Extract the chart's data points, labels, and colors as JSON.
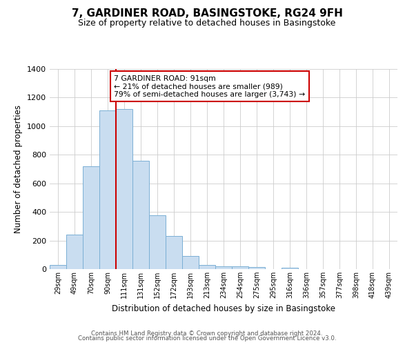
{
  "title": "7, GARDINER ROAD, BASINGSTOKE, RG24 9FH",
  "subtitle": "Size of property relative to detached houses in Basingstoke",
  "xlabel": "Distribution of detached houses by size in Basingstoke",
  "ylabel": "Number of detached properties",
  "bar_labels": [
    "29sqm",
    "49sqm",
    "70sqm",
    "90sqm",
    "111sqm",
    "131sqm",
    "152sqm",
    "172sqm",
    "193sqm",
    "213sqm",
    "234sqm",
    "254sqm",
    "275sqm",
    "295sqm",
    "316sqm",
    "336sqm",
    "357sqm",
    "377sqm",
    "398sqm",
    "418sqm",
    "439sqm"
  ],
  "bar_values": [
    30,
    240,
    720,
    1110,
    1120,
    760,
    375,
    230,
    90,
    30,
    20,
    20,
    15,
    0,
    10,
    0,
    0,
    0,
    0,
    0,
    0
  ],
  "bar_color": "#c9ddf0",
  "bar_edge_color": "#7aafd4",
  "ylim": [
    0,
    1400
  ],
  "yticks": [
    0,
    200,
    400,
    600,
    800,
    1000,
    1200,
    1400
  ],
  "vline_x": 3.5,
  "annotation_title": "7 GARDINER ROAD: 91sqm",
  "annotation_line1": "← 21% of detached houses are smaller (989)",
  "annotation_line2": "79% of semi-detached houses are larger (3,743) →",
  "annotation_box_color": "#ffffff",
  "annotation_box_edge_color": "#cc0000",
  "vline_color": "#cc0000",
  "footer1": "Contains HM Land Registry data © Crown copyright and database right 2024.",
  "footer2": "Contains public sector information licensed under the Open Government Licence v3.0.",
  "bg_color": "#ffffff",
  "grid_color": "#cccccc",
  "title_fontsize": 11,
  "subtitle_fontsize": 9
}
